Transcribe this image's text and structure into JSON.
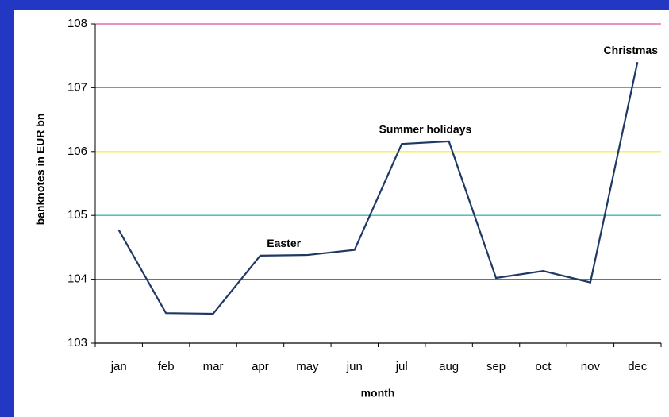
{
  "chart_data": {
    "type": "line",
    "categories": [
      "jan",
      "feb",
      "mar",
      "apr",
      "may",
      "jun",
      "jul",
      "aug",
      "sep",
      "oct",
      "nov",
      "dec"
    ],
    "series": [
      {
        "color": "#1f3864",
        "values": [
          104.77,
          103.47,
          103.46,
          104.37,
          104.38,
          104.46,
          106.12,
          106.16,
          104.02,
          104.13,
          103.95,
          107.4
        ]
      }
    ],
    "ylim": [
      103,
      108
    ],
    "yticks": [
      103,
      104,
      105,
      106,
      107,
      108
    ],
    "grid": true,
    "grid_colors": [
      "#000000",
      "#4f6fd8",
      "#3cb8b0",
      "#f2ef55",
      "#f07048",
      "#e0509a"
    ],
    "xlabel": "month",
    "ylabel": "banknotes in EUR bn",
    "annotations": [
      {
        "text": "Easter",
        "categories": [
          "apr",
          "may"
        ]
      },
      {
        "text": "Summer holidays",
        "categories": [
          "jul",
          "aug"
        ]
      },
      {
        "text": "Christmas",
        "categories": [
          "dec"
        ]
      }
    ]
  }
}
